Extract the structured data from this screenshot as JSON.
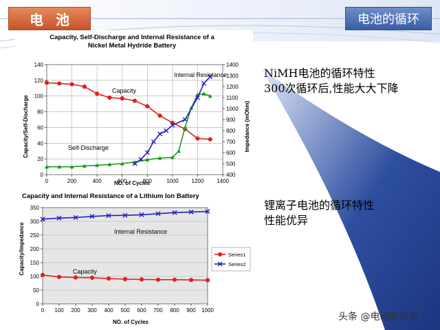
{
  "header": {
    "left_title": "电池",
    "right_title": "电池的循环"
  },
  "notes": {
    "nimh_line1": "NiMH电池的循环特性",
    "nimh_line2": "300次循环后,性能大大下降",
    "li_line1": "锂离子电池的循环特性",
    "li_line2": "性能优异"
  },
  "watermark": "头条 @电动新视界",
  "colors": {
    "accent_orange": "#c8532a",
    "accent_blue": "#3a5ea6",
    "series_red": "#e02020",
    "series_blue": "#2020c0",
    "series_green": "#1a9a1a"
  },
  "chart_data": [
    {
      "type": "line",
      "title": "Capacity, Self-Discharge and Internal Resistance of a Nickel Metal Hydride Battery",
      "title_line1": "Capacity, Self-Discharge and Internal Resistance of a",
      "title_line2": "Nickel Metal Hydride Battery",
      "xlabel": "NO. of Cycles",
      "ylabel": "Capacity/Self-Discharge",
      "y2label": "Impedance (mOhm)",
      "xlim": [
        0,
        1400
      ],
      "ylim": [
        0,
        140
      ],
      "y2lim": [
        400,
        1400
      ],
      "xticks": [
        "0",
        "200",
        "400",
        "600",
        "800",
        "1000",
        "1200",
        "1400"
      ],
      "yticks": [
        "0",
        "20",
        "40",
        "60",
        "80",
        "100",
        "120",
        "140"
      ],
      "y2ticks": [
        "400",
        "500",
        "600",
        "700",
        "800",
        "900",
        "1000",
        "1100",
        "1200",
        "1300",
        "1400"
      ],
      "grid": true,
      "annotations": [
        "Internal Resistance",
        "Capacity",
        "Self-Discharge"
      ],
      "series": [
        {
          "name": "Capacity",
          "axis": "left",
          "color": "#e02020",
          "marker": "circle",
          "x": [
            0,
            100,
            200,
            300,
            400,
            500,
            600,
            700,
            800,
            900,
            1000,
            1100,
            1200,
            1300
          ],
          "y": [
            117,
            116,
            115,
            112,
            103,
            98,
            97,
            94,
            87,
            75,
            66,
            58,
            46,
            45
          ]
        },
        {
          "name": "Self-Discharge",
          "axis": "left",
          "color": "#1a9a1a",
          "marker": "triangle",
          "x": [
            0,
            100,
            200,
            300,
            400,
            500,
            600,
            700,
            800,
            900,
            1000,
            1050,
            1100,
            1150,
            1200,
            1250,
            1300
          ],
          "y": [
            10,
            10,
            10,
            11,
            12,
            13,
            14,
            16,
            19,
            21,
            22,
            30,
            60,
            85,
            102,
            103,
            100
          ]
        },
        {
          "name": "Internal Resistance",
          "axis": "right",
          "color": "#2020c0",
          "marker": "x",
          "x": [
            700,
            750,
            800,
            850,
            900,
            950,
            1000,
            1100,
            1200,
            1250,
            1300
          ],
          "y": [
            500,
            540,
            600,
            700,
            770,
            800,
            850,
            900,
            1100,
            1230,
            1290
          ]
        }
      ]
    },
    {
      "type": "line",
      "title": "Capacity and Internal Resistance of a Lithium Ion Battery",
      "xlabel": "NO. of Cycles",
      "ylabel": "Capacity/Impedance",
      "xlim": [
        0,
        1000
      ],
      "ylim": [
        0,
        350
      ],
      "xticks": [
        "0",
        "100",
        "200",
        "300",
        "400",
        "500",
        "600",
        "700",
        "800",
        "900",
        "1000"
      ],
      "yticks": [
        "0",
        "50",
        "100",
        "150",
        "200",
        "250",
        "300",
        "350"
      ],
      "grid": true,
      "legend": "right",
      "annotations": [
        "Internal Resistance",
        "Capacity"
      ],
      "series": [
        {
          "name": "Series1",
          "color": "#e02020",
          "marker": "circle",
          "x": [
            0,
            100,
            200,
            300,
            400,
            500,
            600,
            700,
            800,
            900,
            1000
          ],
          "y": [
            105,
            98,
            96,
            95,
            92,
            90,
            89,
            88,
            88,
            87,
            86
          ]
        },
        {
          "name": "Series2",
          "color": "#2020c0",
          "marker": "x",
          "x": [
            0,
            100,
            200,
            300,
            400,
            500,
            600,
            700,
            800,
            900,
            1000
          ],
          "y": [
            308,
            312,
            314,
            318,
            321,
            322,
            324,
            328,
            332,
            334,
            336
          ]
        }
      ]
    }
  ]
}
